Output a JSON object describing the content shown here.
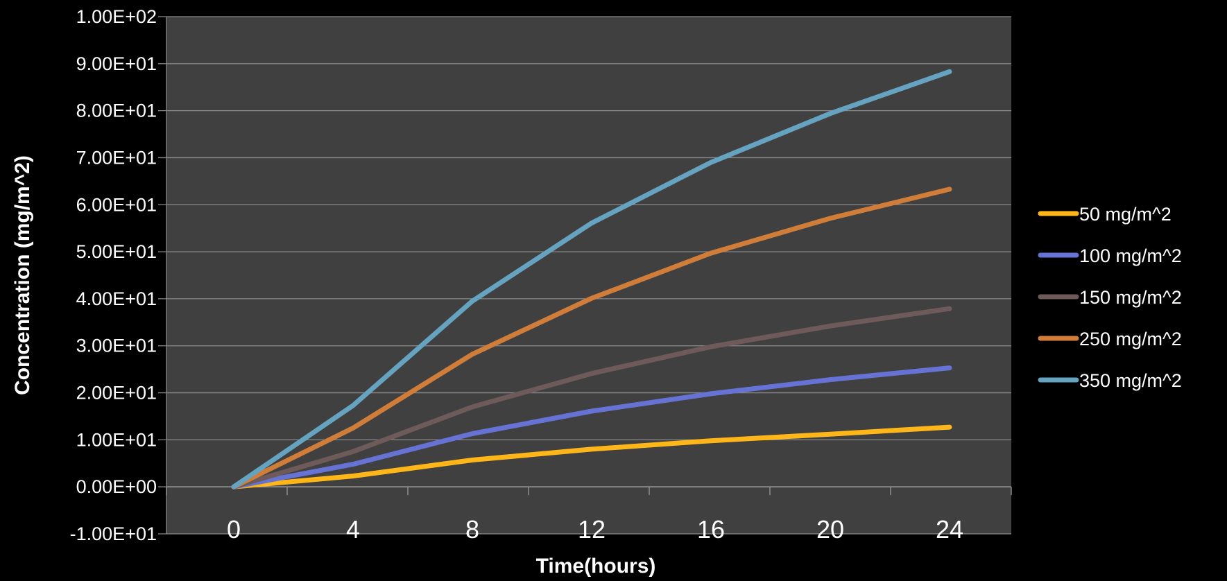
{
  "chart_data": {
    "type": "line",
    "title": "",
    "xlabel": "Time(hours)",
    "ylabel": "Concentration (mg/m^2)",
    "x": [
      0,
      4,
      8,
      12,
      16,
      20,
      24
    ],
    "x_tick_labels": [
      "0",
      "4",
      "8",
      "12",
      "16",
      "20",
      "24"
    ],
    "ylim": [
      -10,
      100
    ],
    "y_ticks": [
      -10,
      0,
      10,
      20,
      30,
      40,
      50,
      60,
      70,
      80,
      90,
      100
    ],
    "y_tick_labels": [
      "-1.00E+01",
      "0.00E+00",
      "1.00E+01",
      "2.00E+01",
      "3.00E+01",
      "4.00E+01",
      "5.00E+01",
      "6.00E+01",
      "7.00E+01",
      "8.00E+01",
      "9.00E+01",
      "1.00E+02"
    ],
    "grid": "horizontal",
    "legend_position": "right",
    "plot_background": "#404040",
    "series": [
      {
        "name": "50 mg/m^2",
        "color": "#ffb619",
        "values": [
          0,
          2.3,
          5.7,
          8.0,
          9.8,
          11.2,
          12.7
        ]
      },
      {
        "name": "100 mg/m^2",
        "color": "#6773d4",
        "values": [
          0,
          4.8,
          11.3,
          16.1,
          19.8,
          22.8,
          25.3
        ]
      },
      {
        "name": "150 mg/m^2",
        "color": "#6f5a5a",
        "values": [
          0,
          7.5,
          17.0,
          24.1,
          29.8,
          34.2,
          37.9
        ]
      },
      {
        "name": "250 mg/m^2",
        "color": "#d07d3a",
        "values": [
          0,
          12.5,
          28.2,
          40.1,
          49.7,
          57.1,
          63.3
        ]
      },
      {
        "name": "350 mg/m^2",
        "color": "#65a3c1",
        "values": [
          0,
          17.3,
          39.5,
          56.1,
          69.0,
          79.4,
          88.3
        ]
      }
    ]
  }
}
